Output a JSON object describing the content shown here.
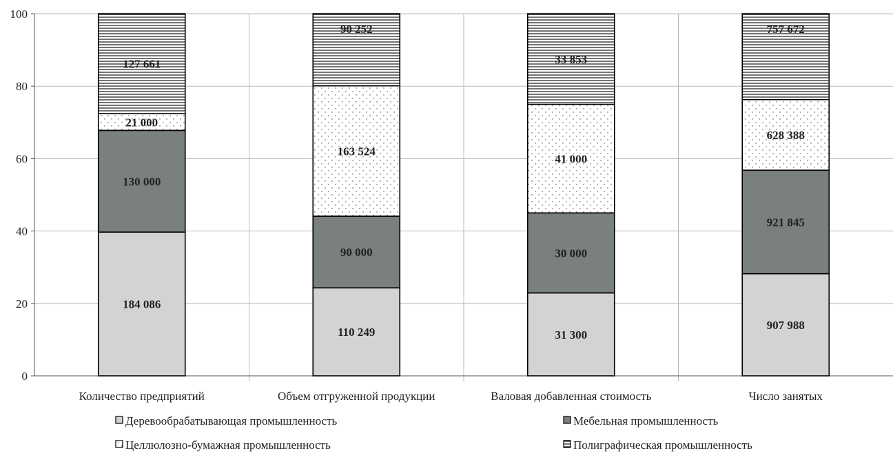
{
  "chart_data": {
    "type": "bar",
    "stacked": true,
    "categories": [
      "Количество предприятий",
      "Объем отгруженной продукции",
      "Валовая добавленная стоимость",
      "Число занятых"
    ],
    "ylim": [
      0,
      100
    ],
    "yticks": [
      0,
      20,
      40,
      60,
      80,
      100
    ],
    "grid": true,
    "legend_position": "bottom",
    "series": [
      {
        "name": "Деревообрабатывающая промышленность",
        "values": [
          39.7,
          24.3,
          22.9,
          28.2
        ],
        "labels": [
          "184 086",
          "110 249",
          "31 300",
          "907 988"
        ],
        "color": "#d3d3d3",
        "pattern": "solid"
      },
      {
        "name": "Мебельная промышленность",
        "values": [
          28.1,
          19.8,
          22.1,
          28.6
        ],
        "labels": [
          "130 000",
          "90 000",
          "30 000",
          "921 845"
        ],
        "color": "#7a7f7f",
        "pattern": "solid"
      },
      {
        "name": "Целлюлозно-бумажная промышленность",
        "values": [
          4.6,
          36.0,
          30.0,
          19.5
        ],
        "labels": [
          "21 000",
          "163 524",
          "41 000",
          "628 388"
        ],
        "color": "#ffffff",
        "pattern": "dots"
      },
      {
        "name": "Полиграфическая промышленность",
        "values": [
          27.6,
          19.9,
          25.0,
          23.7
        ],
        "labels": [
          "127 661",
          "90 252",
          "33 853",
          "757 672"
        ],
        "color": "#ffffff",
        "pattern": "hlines"
      }
    ]
  }
}
